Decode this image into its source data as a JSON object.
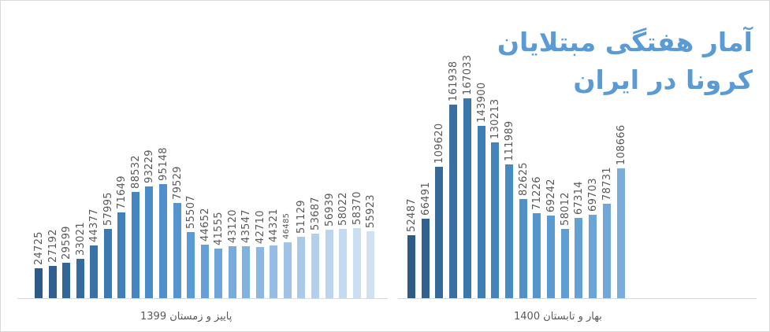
{
  "chart_data": {
    "type": "bar",
    "title": "آمار هفتگی مبتلایان کرونا در ایران",
    "title_lines": [
      "آمار هفتگی مبتلایان",
      "کرونا در ایران"
    ],
    "xlabel": "",
    "ylabel": "",
    "grid": false,
    "legend": null,
    "data_labels": true,
    "groups": [
      {
        "label": "پاییز و زمستان 1399",
        "values": [
          24725,
          27192,
          29599,
          33021,
          44377,
          57995,
          71649,
          88532,
          93229,
          95148,
          79529,
          55507,
          44652,
          41555,
          43120,
          43547,
          42710,
          44321,
          46485,
          51129,
          53687,
          56939,
          58022,
          58370,
          55923
        ],
        "colors": [
          "#2e5a87",
          "#30608f",
          "#326697",
          "#356c9f",
          "#3872a8",
          "#3b79b2",
          "#3f80bb",
          "#4386c2",
          "#4a8cc8",
          "#508fcb",
          "#5694cf",
          "#5b9bd5",
          "#649fd7",
          "#6da5da",
          "#77abdc",
          "#81b1df",
          "#8bb7e2",
          "#95bde4",
          "#9fc3e7",
          "#a9c9e9",
          "#b3cfec",
          "#bcd5ee",
          "#c4daf0",
          "#cbdef2",
          "#d0e1f3"
        ]
      },
      {
        "label": "بهار و تابستان 1400",
        "values": [
          52487,
          66491,
          109620,
          161938,
          167033,
          143900,
          130213,
          111989,
          82625,
          71226,
          69242,
          58012,
          67314,
          69703,
          78731,
          108666
        ],
        "colors": [
          "#2e5a87",
          "#31628f",
          "#346998",
          "#3770a1",
          "#3a77aa",
          "#3e7eb3",
          "#4385bb",
          "#488bc1",
          "#4e90c7",
          "#5495cc",
          "#5a9ad0",
          "#5f9dd3",
          "#65a0d5",
          "#6ba4d7",
          "#72a8d9",
          "#7aaddc"
        ]
      }
    ],
    "ylim": [
      0,
      170000
    ]
  },
  "labels": {
    "title_line1": "آمار هفتگی مبتلایان",
    "title_line2": "کرونا در ایران",
    "group1": "پاییز و زمستان 1399",
    "group2": "بهار و تابستان 1400"
  }
}
